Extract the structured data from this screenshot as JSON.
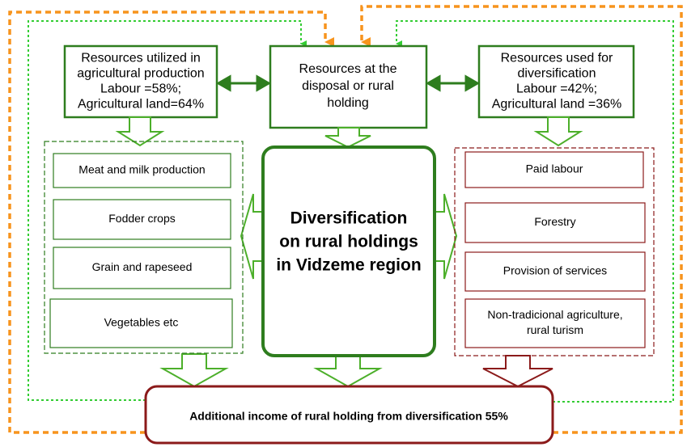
{
  "top_boxes": [
    {
      "lines": [
        "Resources  utilized in",
        "agricultural production",
        "Labour =58%;",
        "Agricultural land=64%"
      ]
    },
    {
      "lines": [
        "Resources at the",
        "disposal or rural",
        "holding"
      ]
    },
    {
      "lines": [
        "Resources used for",
        "diversification",
        "Labour =42%;",
        "Agricultural land =36%"
      ]
    }
  ],
  "left_items": [
    "Meat and milk production",
    "Fodder crops",
    "Grain and rapeseed",
    "Vegetables etc"
  ],
  "center": {
    "lines": [
      "Diversification",
      "on rural holdings",
      "in Vidzeme region"
    ]
  },
  "right_items": [
    {
      "lines": [
        "Paid labour"
      ]
    },
    {
      "lines": [
        "Forestry"
      ]
    },
    {
      "lines": [
        "Provision of services"
      ]
    },
    {
      "lines": [
        "Non-tradicional agriculture,",
        "rural turism"
      ]
    }
  ],
  "bottom": "Additional income of rural holding from diversification  55%"
}
